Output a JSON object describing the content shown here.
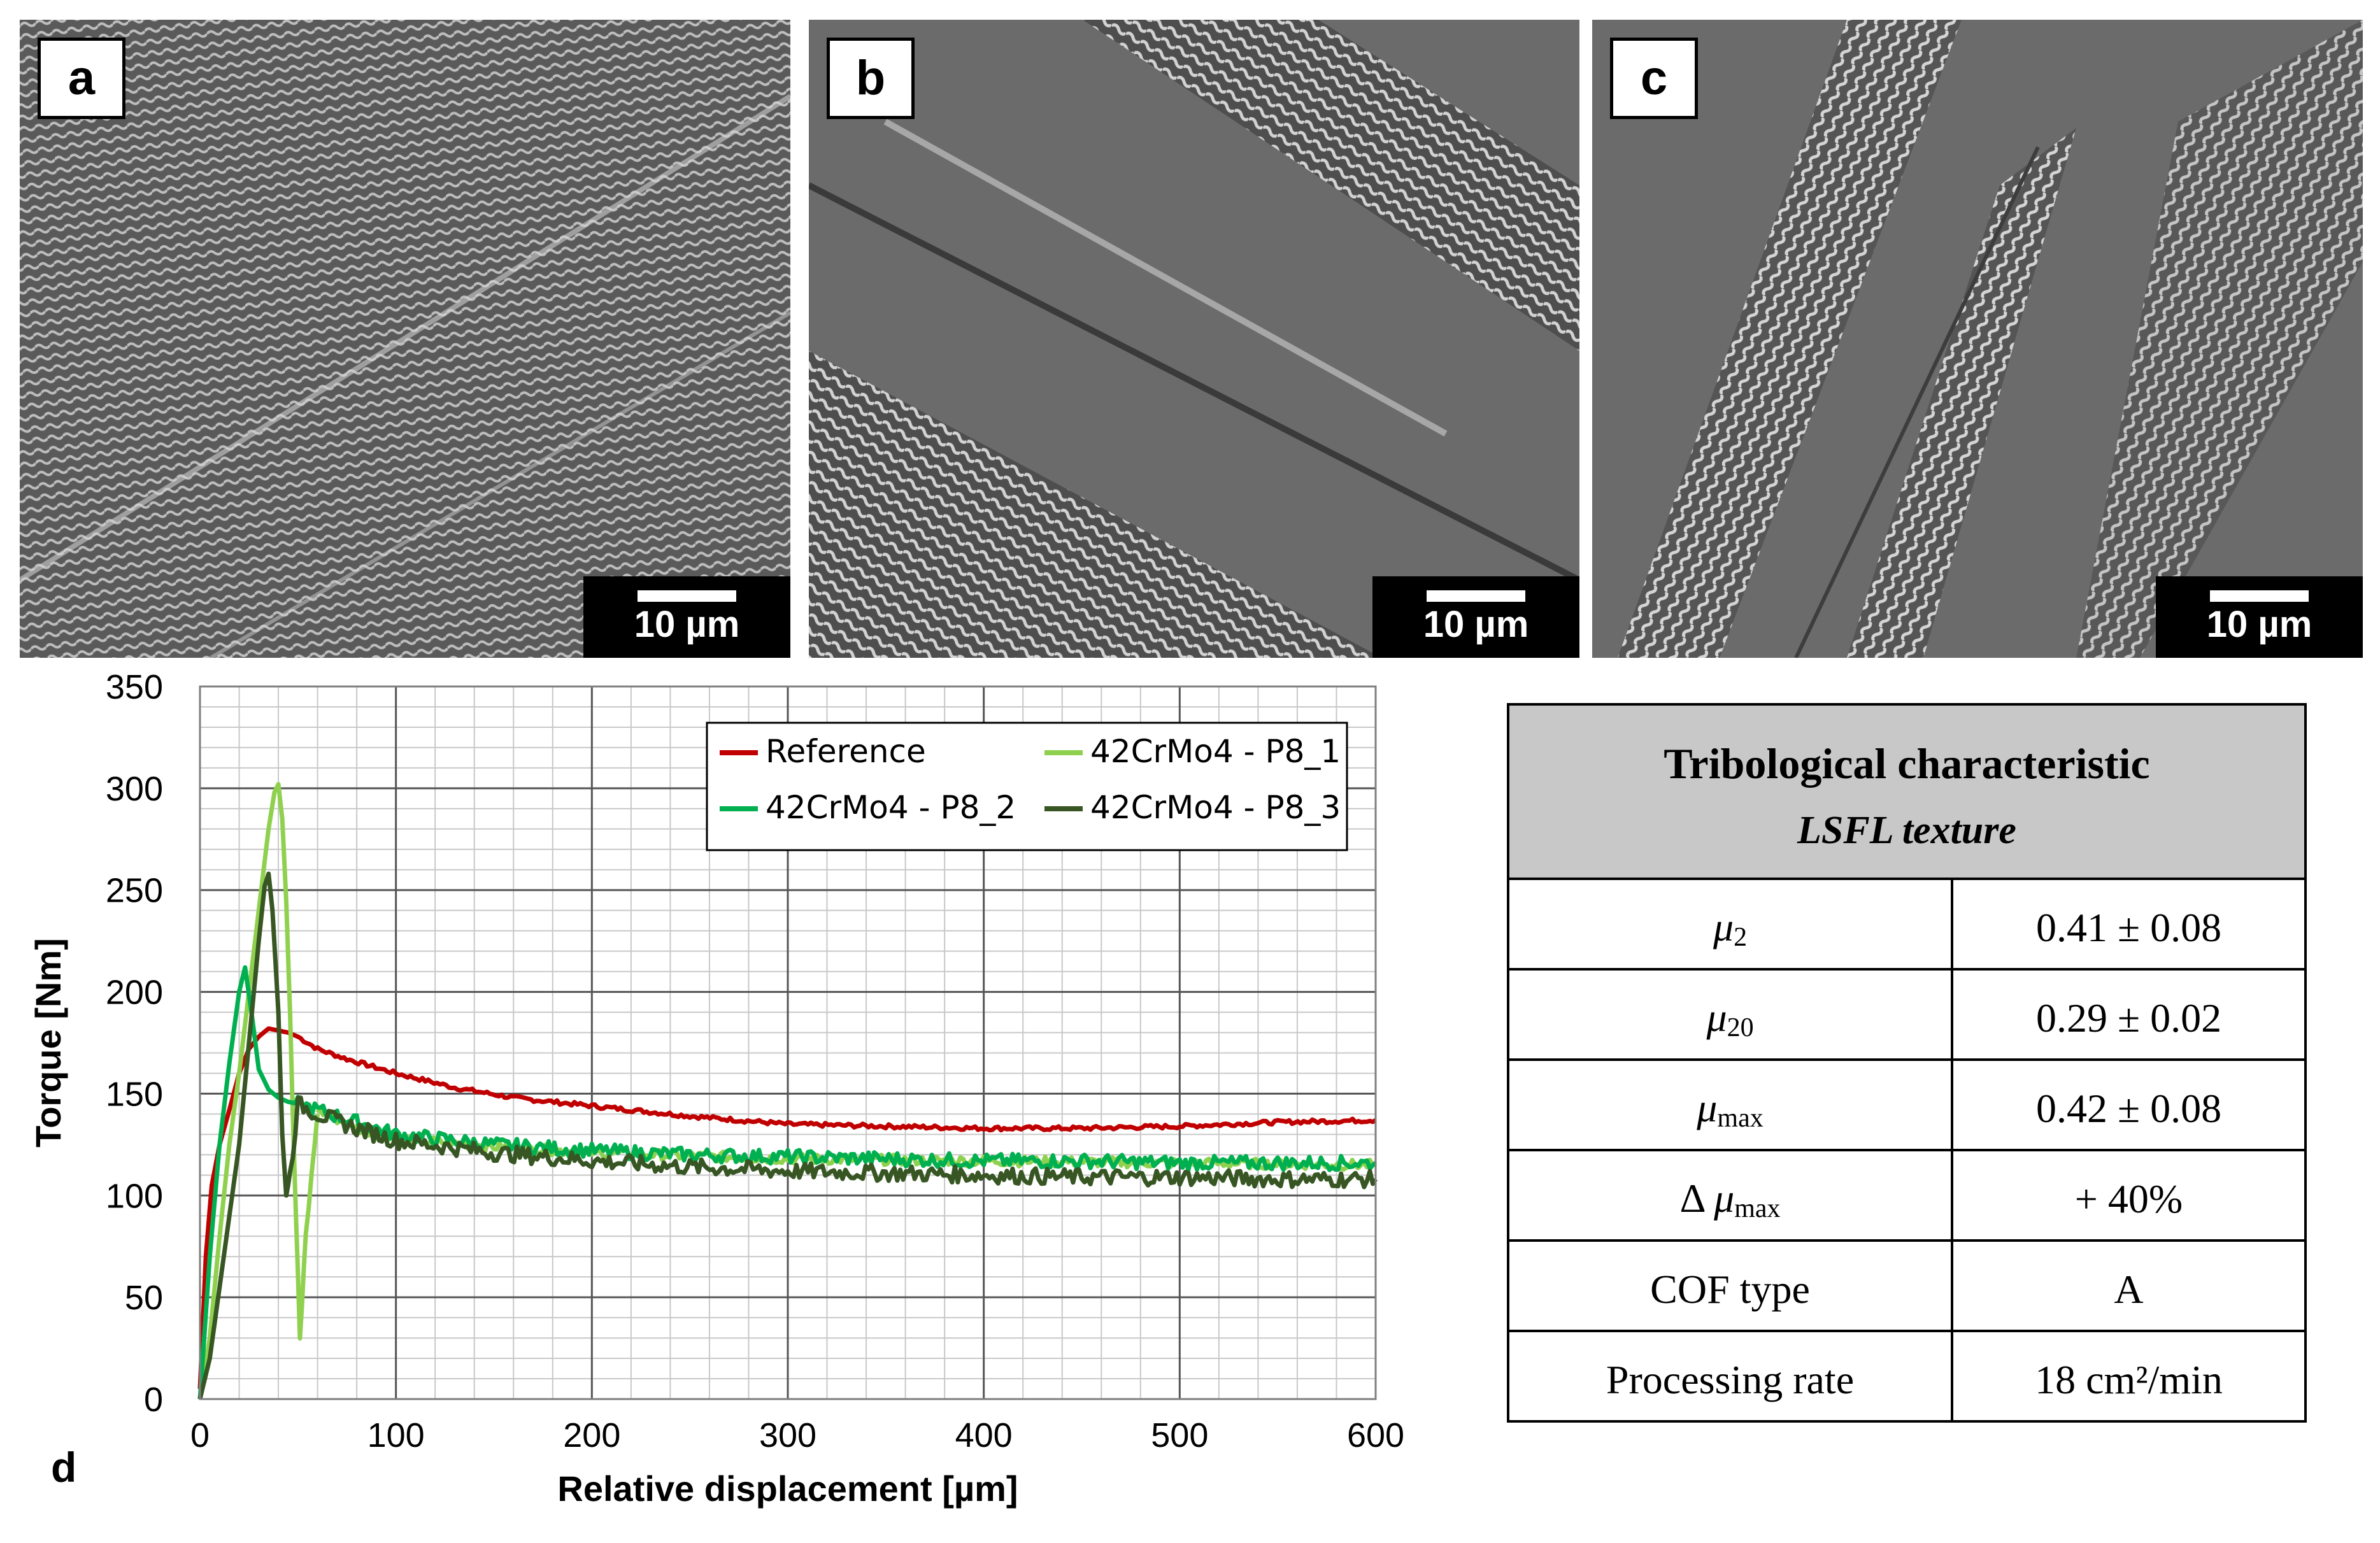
{
  "panels": [
    {
      "label": "a",
      "scale": "10 µm"
    },
    {
      "label": "b",
      "scale": "10 µm"
    },
    {
      "label": "c",
      "scale": "10 µm"
    }
  ],
  "chart_label": "d",
  "chart_data": {
    "type": "line",
    "xlabel": "Relative displacement [µm]",
    "ylabel": "Torque [Nm]",
    "xlim": [
      0,
      600
    ],
    "ylim": [
      0,
      350
    ],
    "xticks": [
      0,
      100,
      200,
      300,
      400,
      500,
      600
    ],
    "yticks": [
      0,
      50,
      100,
      150,
      200,
      250,
      300,
      350
    ],
    "grid": true,
    "legend_position": "top-right",
    "series": [
      {
        "name": "Reference",
        "color": "#c00000",
        "x": [
          0,
          3,
          6,
          10,
          15,
          20,
          25,
          30,
          35,
          40,
          45,
          50,
          60,
          75,
          100,
          130,
          160,
          200,
          250,
          300,
          350,
          400,
          450,
          500,
          550,
          600
        ],
        "y": [
          5,
          70,
          105,
          125,
          142,
          160,
          172,
          178,
          182,
          181,
          180,
          178,
          172,
          167,
          160,
          153,
          148,
          144,
          139,
          135,
          134,
          133,
          133,
          134,
          136,
          137
        ]
      },
      {
        "name": "42CrMo4 - P8_1",
        "color": "#8fd14f",
        "x": [
          0,
          5,
          10,
          15,
          20,
          25,
          30,
          35,
          38,
          40,
          42,
          44,
          46,
          48,
          50,
          51,
          52,
          54,
          57,
          60
        ],
        "y": [
          0,
          30,
          80,
          125,
          160,
          200,
          240,
          280,
          298,
          302,
          285,
          245,
          190,
          120,
          60,
          30,
          45,
          80,
          110,
          140
        ],
        "continuation": {
          "x": [
            60,
            80,
            100,
            150,
            200,
            300,
            400,
            500,
            600
          ],
          "y": [
            142,
            133,
            128,
            124,
            121,
            118,
            117,
            116,
            115
          ]
        }
      },
      {
        "name": "42CrMo4 - P8_2",
        "color": "#00b050",
        "x": [
          0,
          5,
          10,
          15,
          20,
          23,
          26,
          30,
          35,
          40,
          45,
          50,
          60,
          80,
          100,
          150,
          200,
          250,
          300,
          350,
          400,
          450,
          500,
          550,
          600
        ],
        "y": [
          0,
          70,
          125,
          165,
          200,
          212,
          192,
          162,
          152,
          148,
          146,
          145,
          142,
          136,
          130,
          125,
          122,
          120,
          119,
          118,
          117,
          117,
          116,
          116,
          116
        ]
      },
      {
        "name": "42CrMo4 - P8_3",
        "color": "#375623",
        "x": [
          0,
          5,
          10,
          15,
          20,
          25,
          30,
          33,
          35,
          37,
          40,
          42,
          44,
          46,
          50,
          60,
          80,
          100,
          150,
          200,
          250,
          300,
          350,
          400,
          450,
          500,
          550,
          600
        ],
        "y": [
          0,
          20,
          55,
          90,
          125,
          175,
          225,
          252,
          258,
          240,
          190,
          130,
          100,
          110,
          145,
          140,
          133,
          127,
          121,
          117,
          114,
          112,
          111,
          110,
          109,
          109,
          108,
          108
        ]
      }
    ]
  },
  "table": {
    "title": "Tribological characteristic",
    "subtitle": "LSFL texture",
    "rows": [
      {
        "mu": "μ",
        "sub": "2",
        "value": "0.41 ± 0.08"
      },
      {
        "mu": "μ",
        "sub": "20",
        "value": "0.29 ± 0.02"
      },
      {
        "mu": "μ",
        "sub": "max",
        "value": "0.42 ± 0.08"
      },
      {
        "prefix": "Δ ",
        "mu": "μ",
        "sub": "max",
        "value": "+ 40%"
      },
      {
        "label": "COF type",
        "value": "A"
      },
      {
        "label": "Processing rate",
        "value": "18 cm²/min"
      }
    ]
  }
}
